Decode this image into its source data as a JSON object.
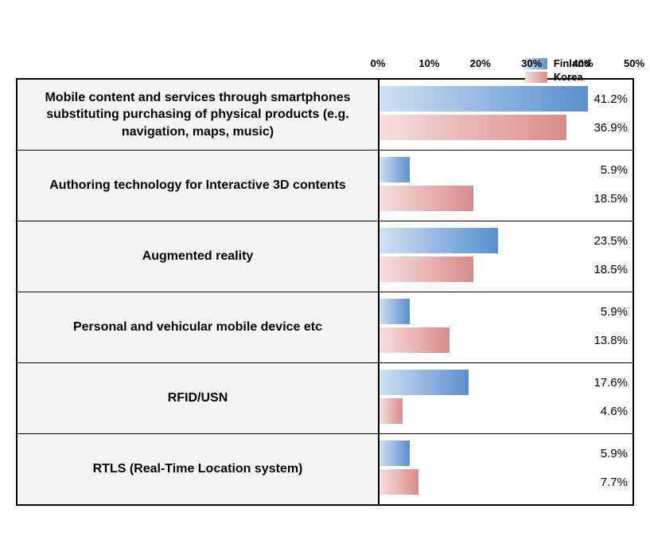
{
  "chart": {
    "type": "horizontal-grouped-bar",
    "legend": {
      "series": [
        {
          "name": "Finland",
          "color_start": "#cfe0f2",
          "color_end": "#5a8fcf"
        },
        {
          "name": "Korea",
          "color_start": "#f7dedf",
          "color_end": "#d88b8b"
        }
      ]
    },
    "axis": {
      "min": 0,
      "max": 50,
      "tick_step": 10,
      "ticks": [
        "0%",
        "10%",
        "20%",
        "30%",
        "40%",
        "50%"
      ],
      "tick_fontsize": 13
    },
    "label_fontsize": 16,
    "value_fontsize": 15,
    "background_color": "#ffffff",
    "row_label_bg": "#f4f4f4",
    "border_color": "#000000",
    "categories": [
      {
        "label": "Mobile content and services through smartphones substituting purchasing of physical products (e.g. navigation, maps, music)",
        "values": [
          {
            "pct": 41.2,
            "text": "41.2%"
          },
          {
            "pct": 36.9,
            "text": "36.9%"
          }
        ]
      },
      {
        "label": "Authoring technology for Interactive 3D contents",
        "values": [
          {
            "pct": 5.9,
            "text": "5.9%"
          },
          {
            "pct": 18.5,
            "text": "18.5%"
          }
        ]
      },
      {
        "label": "Augmented reality",
        "values": [
          {
            "pct": 23.5,
            "text": "23.5%"
          },
          {
            "pct": 18.5,
            "text": "18.5%"
          }
        ]
      },
      {
        "label": "Personal and vehicular mobile device etc",
        "values": [
          {
            "pct": 5.9,
            "text": "5.9%"
          },
          {
            "pct": 13.8,
            "text": "13.8%"
          }
        ]
      },
      {
        "label": "RFID/USN",
        "values": [
          {
            "pct": 17.6,
            "text": "17.6%"
          },
          {
            "pct": 4.6,
            "text": "4.6%"
          }
        ]
      },
      {
        "label": "RTLS (Real-Time Location system)",
        "values": [
          {
            "pct": 5.9,
            "text": "5.9%"
          },
          {
            "pct": 7.7,
            "text": "7.7%"
          }
        ]
      }
    ]
  }
}
